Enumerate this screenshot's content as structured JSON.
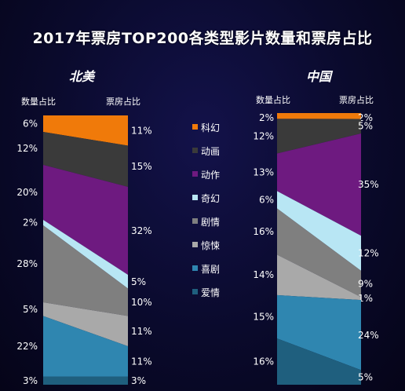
{
  "title": "2017年票房TOP200各类型影片数量和票房占比",
  "column_labels": {
    "left": "数量占比",
    "right": "票房占比"
  },
  "colors": {
    "科幻": "#f07a0a",
    "动画": "#3a3a3a",
    "动作": "#6e1a80",
    "奇幻": "#b8e6f4",
    "剧情": "#7f7f7f",
    "惊悚": "#a9a9a9",
    "喜剧": "#2f86b0",
    "爱情": "#1f5f7e"
  },
  "chart_data": {
    "type": "area",
    "categories": [
      "科幻",
      "动画",
      "动作",
      "奇幻",
      "剧情",
      "惊悚",
      "喜剧",
      "爱情"
    ],
    "panels": [
      {
        "name": "北美",
        "count_share_labels": [
          "6%",
          "12%",
          "20%",
          "2%",
          "28%",
          "5%",
          "22%",
          "3%"
        ],
        "box_office_share_labels": [
          "11%",
          "15%",
          "32%",
          "5%",
          "10%",
          "11%",
          "11%",
          "3%"
        ],
        "count_share": [
          6,
          12,
          20,
          2,
          28,
          5,
          22,
          3
        ],
        "box_office_share": [
          11,
          15,
          32,
          5,
          10,
          11,
          11,
          3
        ]
      },
      {
        "name": "中国",
        "count_share_labels": [
          "2%",
          "12%",
          "13%",
          "6%",
          "16%",
          "14%",
          "15%",
          "16%"
        ],
        "box_office_share_labels": [
          "2%",
          "5%",
          "35%",
          "12%",
          "9%",
          "1%",
          "24%",
          "5%"
        ],
        "count_share": [
          2,
          12,
          13,
          6,
          16,
          14,
          15,
          16
        ],
        "box_office_share": [
          2,
          5,
          35,
          12,
          9,
          1,
          24,
          5
        ]
      }
    ]
  }
}
